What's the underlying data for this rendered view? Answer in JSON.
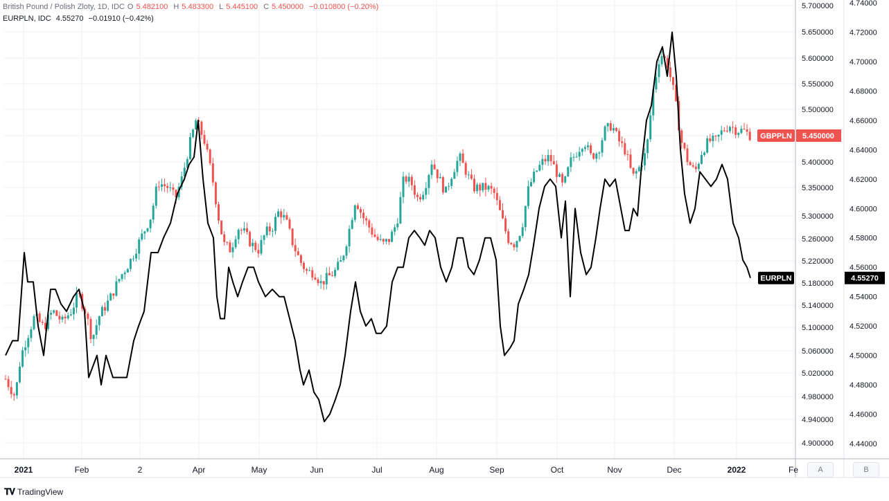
{
  "legend": {
    "primary": {
      "name": "British Pound / Polish Zloty, 1D, IDC",
      "o_label": "O",
      "o": "5.482100",
      "h_label": "H",
      "h": "5.483300",
      "l_label": "L",
      "l": "5.445100",
      "c_label": "C",
      "c": "5.450000",
      "chg": "−0.010800 (−0.20%)"
    },
    "secondary": {
      "name": "EURPLN, IDC",
      "value": "4.55270",
      "chg": "−0.01910 (−0.42%)"
    }
  },
  "footer": {
    "brand": "TradingView"
  },
  "buttons": {
    "left": "A",
    "right": "B"
  },
  "colors": {
    "up": "#26a69a",
    "down": "#ef5350",
    "line": "#000000",
    "grid": "#eef0f3"
  },
  "chart_data": {
    "type": "line",
    "x_ticks": [
      "2021",
      "Feb",
      "2",
      "Apr",
      "May",
      "Jun",
      "Jul",
      "Aug",
      "Sep",
      "Oct",
      "Nov",
      "Dec",
      "2022",
      "Fe"
    ],
    "left_axis": {
      "series": "GBPPLN",
      "ticks": [
        "5.700000",
        "5.650000",
        "5.600000",
        "5.550000",
        "5.500000",
        "5.450000",
        "5.400000",
        "5.350000",
        "5.300000",
        "5.260000",
        "5.220000",
        "5.180000",
        "5.140000",
        "5.100000",
        "5.060000",
        "5.020000",
        "4.980000",
        "4.940000",
        "4.900000"
      ],
      "last_label": "GBPPLN",
      "last_value": "5.450000"
    },
    "right_axis": {
      "series": "EURPLN",
      "ticks": [
        "4.74000",
        "4.72000",
        "4.70000",
        "4.68000",
        "4.66000",
        "4.64000",
        "4.62000",
        "4.60000",
        "4.58000",
        "4.56000",
        "4.54000",
        "4.52000",
        "4.50000",
        "4.48000",
        "4.46000",
        "4.44000"
      ],
      "last_label": "EURPLN",
      "last_value": "4.55270"
    },
    "series": [
      {
        "name": "GBPPLN",
        "style": "candlestick",
        "points": [
          [
            0,
            5.01
          ],
          [
            14,
            4.98
          ],
          [
            22,
            5.05
          ],
          [
            30,
            5.08
          ],
          [
            42,
            5.12
          ],
          [
            55,
            5.1
          ],
          [
            68,
            5.13
          ],
          [
            82,
            5.11
          ],
          [
            95,
            5.13
          ],
          [
            105,
            5.16
          ],
          [
            115,
            5.13
          ],
          [
            125,
            5.08
          ],
          [
            135,
            5.12
          ],
          [
            150,
            5.15
          ],
          [
            165,
            5.19
          ],
          [
            180,
            5.22
          ],
          [
            195,
            5.26
          ],
          [
            210,
            5.3
          ],
          [
            220,
            5.36
          ],
          [
            235,
            5.35
          ],
          [
            245,
            5.33
          ],
          [
            255,
            5.37
          ],
          [
            265,
            5.43
          ],
          [
            275,
            5.48
          ],
          [
            287,
            5.44
          ],
          [
            297,
            5.38
          ],
          [
            307,
            5.3
          ],
          [
            315,
            5.25
          ],
          [
            325,
            5.24
          ],
          [
            335,
            5.28
          ],
          [
            345,
            5.27
          ],
          [
            355,
            5.25
          ],
          [
            365,
            5.24
          ],
          [
            375,
            5.27
          ],
          [
            385,
            5.28
          ],
          [
            395,
            5.31
          ],
          [
            405,
            5.29
          ],
          [
            415,
            5.25
          ],
          [
            425,
            5.22
          ],
          [
            435,
            5.2
          ],
          [
            445,
            5.2
          ],
          [
            455,
            5.18
          ],
          [
            465,
            5.19
          ],
          [
            475,
            5.2
          ],
          [
            485,
            5.22
          ],
          [
            495,
            5.27
          ],
          [
            505,
            5.33
          ],
          [
            515,
            5.3
          ],
          [
            525,
            5.28
          ],
          [
            535,
            5.26
          ],
          [
            545,
            5.25
          ],
          [
            555,
            5.26
          ],
          [
            565,
            5.29
          ],
          [
            575,
            5.37
          ],
          [
            585,
            5.36
          ],
          [
            595,
            5.33
          ],
          [
            605,
            5.35
          ],
          [
            615,
            5.4
          ],
          [
            625,
            5.37
          ],
          [
            635,
            5.34
          ],
          [
            645,
            5.38
          ],
          [
            655,
            5.41
          ],
          [
            665,
            5.38
          ],
          [
            675,
            5.35
          ],
          [
            685,
            5.35
          ],
          [
            695,
            5.35
          ],
          [
            705,
            5.34
          ],
          [
            715,
            5.3
          ],
          [
            725,
            5.26
          ],
          [
            735,
            5.25
          ],
          [
            745,
            5.28
          ],
          [
            755,
            5.35
          ],
          [
            765,
            5.38
          ],
          [
            775,
            5.4
          ],
          [
            785,
            5.41
          ],
          [
            795,
            5.38
          ],
          [
            805,
            5.35
          ],
          [
            815,
            5.4
          ],
          [
            825,
            5.42
          ],
          [
            835,
            5.44
          ],
          [
            845,
            5.41
          ],
          [
            855,
            5.42
          ],
          [
            865,
            5.46
          ],
          [
            875,
            5.47
          ],
          [
            885,
            5.44
          ],
          [
            895,
            5.42
          ],
          [
            905,
            5.37
          ],
          [
            915,
            5.39
          ],
          [
            925,
            5.42
          ],
          [
            935,
            5.54
          ],
          [
            945,
            5.61
          ],
          [
            955,
            5.59
          ],
          [
            965,
            5.53
          ],
          [
            975,
            5.44
          ],
          [
            985,
            5.4
          ],
          [
            995,
            5.38
          ],
          [
            1005,
            5.42
          ],
          [
            1015,
            5.44
          ],
          [
            1025,
            5.44
          ],
          [
            1035,
            5.46
          ],
          [
            1045,
            5.47
          ],
          [
            1055,
            5.46
          ],
          [
            1065,
            5.46
          ],
          [
            1075,
            5.45
          ]
        ]
      },
      {
        "name": "EURPLN",
        "style": "line",
        "points": [
          [
            0,
            4.5
          ],
          [
            10,
            4.51
          ],
          [
            18,
            4.51
          ],
          [
            27,
            4.57
          ],
          [
            32,
            4.55
          ],
          [
            40,
            4.55
          ],
          [
            47,
            4.52
          ],
          [
            55,
            4.5
          ],
          [
            65,
            4.545
          ],
          [
            72,
            4.545
          ],
          [
            80,
            4.535
          ],
          [
            88,
            4.53
          ],
          [
            98,
            4.54
          ],
          [
            106,
            4.545
          ],
          [
            114,
            4.53
          ],
          [
            120,
            4.485
          ],
          [
            128,
            4.495
          ],
          [
            132,
            4.5
          ],
          [
            138,
            4.48
          ],
          [
            145,
            4.5
          ],
          [
            155,
            4.485
          ],
          [
            165,
            4.485
          ],
          [
            175,
            4.485
          ],
          [
            185,
            4.51
          ],
          [
            192,
            4.52
          ],
          [
            200,
            4.53
          ],
          [
            210,
            4.57
          ],
          [
            220,
            4.57
          ],
          [
            228,
            4.58
          ],
          [
            238,
            4.59
          ],
          [
            248,
            4.61
          ],
          [
            258,
            4.62
          ],
          [
            265,
            4.63
          ],
          [
            272,
            4.635
          ],
          [
            278,
            4.66
          ],
          [
            285,
            4.62
          ],
          [
            292,
            4.59
          ],
          [
            300,
            4.58
          ],
          [
            305,
            4.54
          ],
          [
            310,
            4.525
          ],
          [
            316,
            4.525
          ],
          [
            322,
            4.56
          ],
          [
            328,
            4.55
          ],
          [
            335,
            4.54
          ],
          [
            342,
            4.55
          ],
          [
            350,
            4.56
          ],
          [
            358,
            4.56
          ],
          [
            365,
            4.55
          ],
          [
            375,
            4.54
          ],
          [
            385,
            4.545
          ],
          [
            395,
            4.54
          ],
          [
            402,
            4.54
          ],
          [
            410,
            4.525
          ],
          [
            418,
            4.51
          ],
          [
            425,
            4.49
          ],
          [
            430,
            4.48
          ],
          [
            438,
            4.49
          ],
          [
            445,
            4.475
          ],
          [
            452,
            4.47
          ],
          [
            460,
            4.455
          ],
          [
            468,
            4.46
          ],
          [
            476,
            4.47
          ],
          [
            483,
            4.48
          ],
          [
            490,
            4.5
          ],
          [
            498,
            4.53
          ],
          [
            505,
            4.55
          ],
          [
            512,
            4.53
          ],
          [
            520,
            4.52
          ],
          [
            528,
            4.525
          ],
          [
            535,
            4.515
          ],
          [
            542,
            4.515
          ],
          [
            550,
            4.52
          ],
          [
            558,
            4.55
          ],
          [
            566,
            4.56
          ],
          [
            574,
            4.56
          ],
          [
            582,
            4.58
          ],
          [
            590,
            4.585
          ],
          [
            598,
            4.58
          ],
          [
            605,
            4.575
          ],
          [
            612,
            4.585
          ],
          [
            620,
            4.58
          ],
          [
            628,
            4.56
          ],
          [
            636,
            4.55
          ],
          [
            644,
            4.56
          ],
          [
            652,
            4.58
          ],
          [
            660,
            4.58
          ],
          [
            668,
            4.56
          ],
          [
            676,
            4.555
          ],
          [
            684,
            4.565
          ],
          [
            692,
            4.58
          ],
          [
            700,
            4.58
          ],
          [
            708,
            4.565
          ],
          [
            714,
            4.52
          ],
          [
            720,
            4.5
          ],
          [
            728,
            4.505
          ],
          [
            734,
            4.51
          ],
          [
            740,
            4.535
          ],
          [
            748,
            4.545
          ],
          [
            755,
            4.555
          ],
          [
            762,
            4.575
          ],
          [
            770,
            4.6
          ],
          [
            778,
            4.615
          ],
          [
            786,
            4.62
          ],
          [
            794,
            4.615
          ],
          [
            802,
            4.58
          ],
          [
            808,
            4.605
          ],
          [
            815,
            4.54
          ],
          [
            822,
            4.6
          ],
          [
            830,
            4.57
          ],
          [
            838,
            4.555
          ],
          [
            845,
            4.56
          ],
          [
            852,
            4.58
          ],
          [
            858,
            4.6
          ],
          [
            865,
            4.62
          ],
          [
            872,
            4.615
          ],
          [
            880,
            4.62
          ],
          [
            888,
            4.6
          ],
          [
            894,
            4.585
          ],
          [
            900,
            4.585
          ],
          [
            906,
            4.6
          ],
          [
            912,
            4.595
          ],
          [
            918,
            4.63
          ],
          [
            925,
            4.66
          ],
          [
            932,
            4.67
          ],
          [
            940,
            4.7
          ],
          [
            948,
            4.71
          ],
          [
            955,
            4.69
          ],
          [
            962,
            4.72
          ],
          [
            968,
            4.69
          ],
          [
            974,
            4.64
          ],
          [
            980,
            4.61
          ],
          [
            988,
            4.59
          ],
          [
            995,
            4.6
          ],
          [
            1002,
            4.625
          ],
          [
            1010,
            4.62
          ],
          [
            1018,
            4.615
          ],
          [
            1026,
            4.62
          ],
          [
            1034,
            4.63
          ],
          [
            1042,
            4.62
          ],
          [
            1050,
            4.59
          ],
          [
            1058,
            4.58
          ],
          [
            1064,
            4.565
          ],
          [
            1070,
            4.56
          ],
          [
            1075,
            4.5527
          ]
        ]
      }
    ]
  }
}
